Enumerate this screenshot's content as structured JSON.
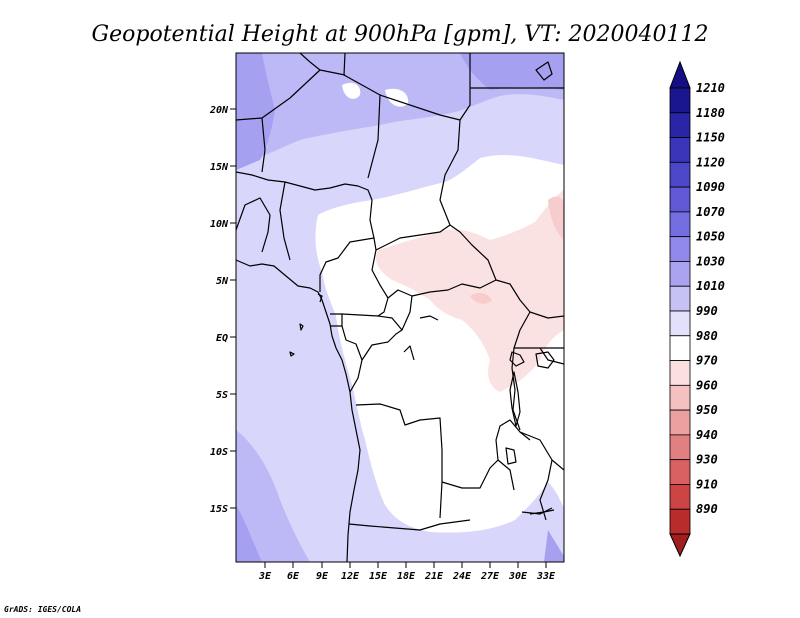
{
  "title": "Geopotential Height at 900hPa [gpm], VT: 2020040112",
  "credit": "GrADS: IGES/COLA",
  "map": {
    "lat_ticks": [
      "20N",
      "15N",
      "10N",
      "5N",
      "EQ",
      "5S",
      "10S",
      "15S"
    ],
    "lon_ticks": [
      "3E",
      "6E",
      "9E",
      "12E",
      "15E",
      "18E",
      "21E",
      "24E",
      "27E",
      "30E",
      "33E"
    ]
  },
  "colorbar": {
    "levels": [
      {
        "label": "1210",
        "color": "#1a1690"
      },
      {
        "label": "1180",
        "color": "#2a24a6"
      },
      {
        "label": "1150",
        "color": "#3a34b8"
      },
      {
        "label": "1120",
        "color": "#4c46c8"
      },
      {
        "label": "1090",
        "color": "#6058d4"
      },
      {
        "label": "1070",
        "color": "#756ee0"
      },
      {
        "label": "1050",
        "color": "#9088ea"
      },
      {
        "label": "1030",
        "color": "#aaa4f0"
      },
      {
        "label": "1010",
        "color": "#c6c2f4"
      },
      {
        "label": "990",
        "color": "#e2e0fa"
      },
      {
        "label": "980",
        "color": "#ffffff"
      },
      {
        "label": "970",
        "color": "#fbe0e0"
      },
      {
        "label": "960",
        "color": "#f4c0c0"
      },
      {
        "label": "950",
        "color": "#eca0a0"
      },
      {
        "label": "940",
        "color": "#e08080"
      },
      {
        "label": "930",
        "color": "#d86060"
      },
      {
        "label": "910",
        "color": "#cc4444"
      },
      {
        "label": "890",
        "color": "#b82c2c"
      }
    ],
    "top_color": "#140f85",
    "bottom_color": "#a01e1e"
  }
}
